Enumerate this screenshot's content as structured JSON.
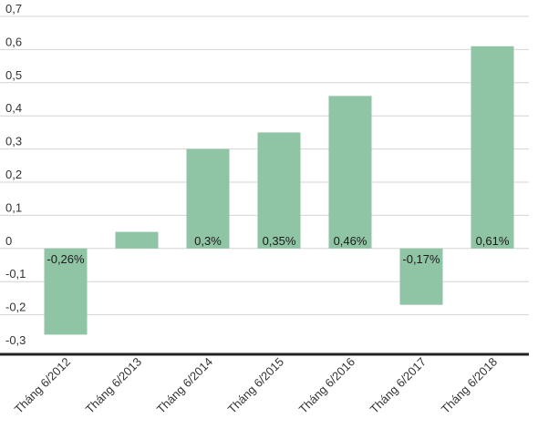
{
  "chart_data": {
    "type": "bar",
    "title": "",
    "xlabel": "",
    "ylabel": "",
    "categories": [
      "Tháng 6/2012",
      "Tháng 6/2013",
      "Tháng 6/2014",
      "Tháng 6/2015",
      "Tháng 6/2016",
      "Tháng 6/2017",
      "Tháng 6/2018"
    ],
    "values": [
      -0.26,
      0.05,
      0.3,
      0.35,
      0.46,
      -0.17,
      0.61
    ],
    "data_labels": [
      "-0,26%",
      "",
      "0,3%",
      "0,35%",
      "0,46%",
      "-0,17%",
      "0,61%"
    ],
    "ylim": [
      -0.3,
      0.7
    ],
    "yticks": [
      0.7,
      0.6,
      0.5,
      0.4,
      0.3,
      0.2,
      0.1,
      0,
      -0.1,
      -0.2,
      -0.3
    ],
    "ytick_labels": [
      "0,7",
      "0,6",
      "0,5",
      "0,4",
      "0,3",
      "0,2",
      "0,1",
      "0",
      "-0,1",
      "-0,2",
      "-0,3"
    ],
    "grid": true,
    "legend": "none",
    "colors": {
      "bar": "#8fc4a5",
      "grid": "#d4d4d4",
      "axis": "#222222"
    }
  }
}
